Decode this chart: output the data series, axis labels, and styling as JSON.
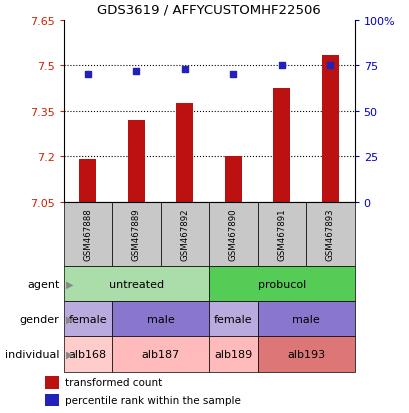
{
  "title": "GDS3619 / AFFYCUSTOMHF22506",
  "samples": [
    "GSM467888",
    "GSM467889",
    "GSM467892",
    "GSM467890",
    "GSM467891",
    "GSM467893"
  ],
  "bar_values": [
    7.19,
    7.32,
    7.375,
    7.2,
    7.425,
    7.535
  ],
  "percentile_values": [
    70,
    72,
    73,
    70,
    75,
    75
  ],
  "bar_bottom": 7.05,
  "ylim_left": [
    7.05,
    7.65
  ],
  "ylim_right": [
    0,
    100
  ],
  "yticks_left": [
    7.05,
    7.2,
    7.35,
    7.5,
    7.65
  ],
  "yticks_right": [
    0,
    25,
    50,
    75,
    100
  ],
  "ytick_labels_left": [
    "7.05",
    "7.2",
    "7.35",
    "7.5",
    "7.65"
  ],
  "ytick_labels_right": [
    "0",
    "25",
    "50",
    "75",
    "100%"
  ],
  "hlines": [
    7.2,
    7.35,
    7.5
  ],
  "bar_color": "#bb1111",
  "dot_color": "#2222bb",
  "sample_bg_color": "#c8c8c8",
  "agent_groups": [
    {
      "label": "untreated",
      "span": [
        0,
        3
      ],
      "color": "#aaddaa"
    },
    {
      "label": "probucol",
      "span": [
        3,
        6
      ],
      "color": "#55cc55"
    }
  ],
  "gender_groups": [
    {
      "label": "female",
      "span": [
        0,
        1
      ],
      "color": "#bbaadd"
    },
    {
      "label": "male",
      "span": [
        1,
        3
      ],
      "color": "#8877cc"
    },
    {
      "label": "female",
      "span": [
        3,
        4
      ],
      "color": "#bbaadd"
    },
    {
      "label": "male",
      "span": [
        4,
        6
      ],
      "color": "#8877cc"
    }
  ],
  "individual_groups": [
    {
      "label": "alb168",
      "span": [
        0,
        1
      ],
      "color": "#ffcccc"
    },
    {
      "label": "alb187",
      "span": [
        1,
        3
      ],
      "color": "#ffbbbb"
    },
    {
      "label": "alb189",
      "span": [
        3,
        4
      ],
      "color": "#ffbbbb"
    },
    {
      "label": "alb193",
      "span": [
        4,
        6
      ],
      "color": "#dd7777"
    }
  ],
  "row_labels": [
    "agent",
    "gender",
    "individual"
  ],
  "legend_items": [
    {
      "color": "#bb1111",
      "label": "transformed count"
    },
    {
      "color": "#2222bb",
      "label": "percentile rank within the sample"
    }
  ],
  "plot_bg_color": "#ffffff",
  "n_samples": 6
}
